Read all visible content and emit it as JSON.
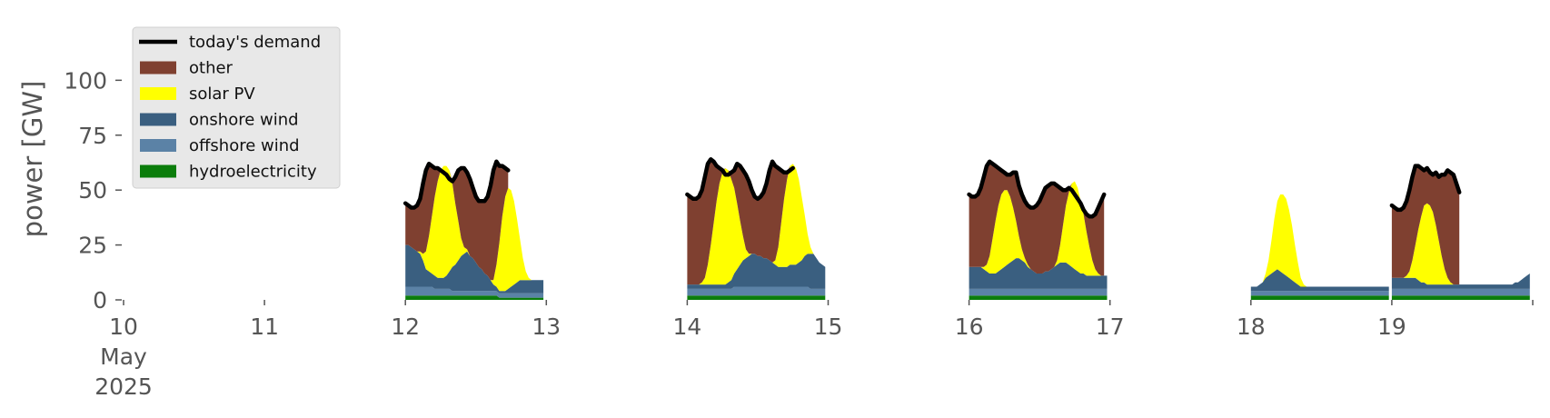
{
  "chart_data": {
    "type": "area",
    "title": "",
    "xlabel": "",
    "ylabel": "power [GW]",
    "ylim": [
      0,
      120
    ],
    "yticks": [
      0,
      25,
      50,
      75,
      100
    ],
    "x_tick_labels": [
      {
        "date": "2025-05-10",
        "label": "10",
        "sublabel_1": "May",
        "sublabel_2": "2025"
      },
      {
        "date": "2025-05-11",
        "label": "11"
      },
      {
        "date": "2025-05-12",
        "label": "12"
      },
      {
        "date": "2025-05-13",
        "label": "13"
      },
      {
        "date": "2025-05-14",
        "label": "14"
      },
      {
        "date": "2025-05-15",
        "label": "15"
      },
      {
        "date": "2025-05-16",
        "label": "16"
      },
      {
        "date": "2025-05-17",
        "label": "17"
      },
      {
        "date": "2025-05-18",
        "label": "18"
      },
      {
        "date": "2025-05-19",
        "label": "19"
      }
    ],
    "xlim": [
      "2025-05-10",
      "2025-05-20"
    ],
    "grid": false,
    "legend_position": "top-left",
    "stacked": true,
    "series": [
      {
        "name": "hydroelectricity",
        "color": "#0b7d0b"
      },
      {
        "name": "offshore wind",
        "color": "#5b82a6"
      },
      {
        "name": "onshore wind",
        "color": "#3a5f80"
      },
      {
        "name": "solar PV",
        "color": "#ffff00"
      },
      {
        "name": "other",
        "color": "#7f4030"
      }
    ],
    "demand_series": {
      "name": "today's demand",
      "color": "#000000"
    },
    "legend_order": [
      "today's demand",
      "other",
      "solar PV",
      "onshore wind",
      "offshore wind",
      "hydroelectricity"
    ],
    "days": [
      {
        "date": "2025-05-12",
        "hydro": [
          2,
          2,
          2,
          2,
          2,
          2,
          2,
          2,
          2,
          2,
          2,
          2,
          2,
          2,
          2,
          2,
          2,
          2,
          2,
          2,
          2,
          2,
          2,
          2,
          2,
          2,
          2,
          2,
          2,
          2,
          2,
          2,
          1,
          1,
          1,
          1,
          1,
          1,
          1,
          1,
          1,
          1,
          1,
          1,
          1,
          1,
          1,
          1
        ],
        "offshore": [
          4,
          4,
          4,
          4,
          4,
          4,
          4,
          4,
          4,
          4,
          3,
          3,
          3,
          3,
          3,
          3,
          2,
          2,
          2,
          2,
          2,
          2,
          2,
          2,
          2,
          2,
          2,
          2,
          2,
          2,
          2,
          2,
          2,
          2,
          2,
          2,
          2,
          2,
          2,
          2,
          2,
          2,
          2,
          2,
          2,
          2,
          2,
          2
        ],
        "onshore": [
          19,
          19,
          18,
          17,
          16,
          15,
          12,
          8,
          7,
          6,
          6,
          5,
          5,
          5,
          6,
          8,
          11,
          12,
          14,
          16,
          17,
          18,
          16,
          15,
          13,
          11,
          10,
          8,
          7,
          5,
          3,
          2,
          1,
          1,
          1,
          2,
          3,
          4,
          5,
          6,
          6,
          6,
          6,
          6,
          6,
          6,
          6,
          6
        ],
        "solar": [
          0,
          0,
          0,
          0,
          0,
          1,
          3,
          8,
          16,
          26,
          36,
          44,
          49,
          51,
          50,
          46,
          38,
          28,
          18,
          8,
          3,
          1,
          0,
          0,
          0,
          0,
          0,
          0,
          0,
          0,
          2,
          10,
          22,
          34,
          43,
          46,
          44,
          38,
          29,
          19,
          10,
          4,
          1,
          0,
          0,
          0,
          0,
          0
        ],
        "demand": [
          44,
          43,
          42,
          42,
          43,
          46,
          53,
          59,
          62,
          61,
          60,
          60,
          59,
          58,
          57,
          55,
          54,
          56,
          59,
          60,
          60,
          58,
          55,
          51,
          47,
          45,
          45,
          45,
          47,
          52,
          59,
          63,
          61,
          61,
          60,
          59
        ]
      },
      {
        "date": "2025-05-14",
        "hydro": [
          2,
          2,
          2,
          2,
          2,
          2,
          2,
          2,
          2,
          2,
          2,
          2,
          2,
          2,
          2,
          2,
          2,
          2,
          2,
          2,
          2,
          2,
          2,
          2,
          2,
          2,
          2,
          2,
          2,
          2,
          2,
          2,
          2,
          2,
          2,
          2,
          2,
          2,
          2,
          2,
          2,
          2,
          2,
          2,
          2,
          2,
          2,
          2
        ],
        "offshore": [
          3,
          3,
          3,
          3,
          3,
          3,
          3,
          3,
          3,
          3,
          3,
          3,
          3,
          3,
          3,
          3,
          4,
          4,
          4,
          4,
          4,
          4,
          4,
          4,
          4,
          4,
          4,
          4,
          4,
          4,
          4,
          4,
          4,
          4,
          4,
          4,
          4,
          4,
          4,
          4,
          4,
          4,
          3,
          3,
          3,
          3,
          3,
          3
        ],
        "onshore": [
          2,
          2,
          2,
          2,
          2,
          2,
          2,
          2,
          2,
          2,
          2,
          2,
          2,
          2,
          3,
          4,
          6,
          8,
          10,
          12,
          13,
          14,
          15,
          15,
          14,
          14,
          13,
          13,
          12,
          11,
          10,
          9,
          9,
          9,
          9,
          10,
          10,
          10,
          11,
          12,
          14,
          15,
          16,
          16,
          14,
          12,
          11,
          10
        ],
        "solar": [
          0,
          0,
          0,
          0,
          0,
          1,
          3,
          9,
          18,
          28,
          38,
          46,
          51,
          53,
          51,
          46,
          39,
          30,
          20,
          11,
          4,
          1,
          0,
          0,
          0,
          0,
          0,
          0,
          0,
          0,
          2,
          9,
          20,
          31,
          40,
          45,
          46,
          44,
          38,
          29,
          19,
          9,
          3,
          0,
          0,
          0,
          0,
          0
        ],
        "demand": [
          48,
          47,
          46,
          46,
          47,
          50,
          56,
          62,
          64,
          63,
          61,
          60,
          59,
          57,
          57,
          58,
          59,
          62,
          61,
          59,
          57,
          54,
          50,
          47,
          46,
          47,
          49,
          53,
          59,
          63,
          61,
          60,
          59,
          58,
          58,
          59,
          60
        ]
      },
      {
        "date": "2025-05-16",
        "hydro": [
          2,
          2,
          2,
          2,
          2,
          2,
          2,
          2,
          2,
          2,
          2,
          2,
          2,
          2,
          2,
          2,
          2,
          2,
          2,
          2,
          2,
          2,
          2,
          2,
          2,
          2,
          2,
          2,
          2,
          2,
          2,
          2,
          2,
          2,
          2,
          2,
          2,
          2,
          2,
          2,
          2,
          2,
          2,
          2,
          2,
          2,
          2,
          2
        ],
        "offshore": [
          3,
          3,
          3,
          3,
          3,
          3,
          3,
          3,
          3,
          3,
          3,
          3,
          3,
          3,
          3,
          3,
          3,
          3,
          3,
          3,
          3,
          3,
          3,
          3,
          3,
          3,
          3,
          3,
          3,
          3,
          3,
          3,
          3,
          3,
          3,
          3,
          3,
          3,
          3,
          3,
          3,
          3,
          3,
          3,
          3,
          3,
          3,
          3
        ],
        "onshore": [
          10,
          10,
          10,
          10,
          10,
          9,
          8,
          7,
          7,
          7,
          8,
          9,
          10,
          11,
          12,
          13,
          14,
          14,
          13,
          12,
          10,
          9,
          8,
          7,
          7,
          7,
          8,
          8,
          9,
          10,
          11,
          12,
          12,
          12,
          11,
          10,
          9,
          8,
          7,
          7,
          6,
          6,
          6,
          6,
          6,
          6,
          6,
          6
        ],
        "solar": [
          0,
          0,
          0,
          0,
          0,
          1,
          3,
          8,
          16,
          24,
          30,
          34,
          35,
          34,
          30,
          24,
          17,
          10,
          5,
          2,
          1,
          0,
          0,
          0,
          0,
          0,
          0,
          0,
          0,
          0,
          2,
          8,
          17,
          26,
          33,
          38,
          40,
          38,
          33,
          27,
          20,
          13,
          7,
          3,
          1,
          0,
          0,
          0
        ],
        "demand": [
          48,
          47,
          47,
          48,
          51,
          56,
          61,
          63,
          62,
          61,
          60,
          59,
          58,
          57,
          57,
          58,
          58,
          52,
          48,
          45,
          43,
          42,
          42,
          43,
          45,
          48,
          51,
          52,
          53,
          53,
          52,
          51,
          50,
          50,
          51,
          50,
          48,
          46,
          44,
          41,
          39,
          38,
          38,
          39,
          42,
          45,
          48
        ]
      },
      {
        "date": "2025-05-18",
        "hydro": [
          2,
          2,
          2,
          2,
          2,
          2,
          2,
          2,
          2,
          2,
          2,
          2,
          2,
          2,
          2,
          2,
          2,
          2,
          2,
          2,
          2,
          2,
          2,
          2,
          2,
          2,
          2,
          2,
          2,
          2,
          2,
          2,
          2,
          2,
          2,
          2,
          2,
          2,
          2,
          2,
          2,
          2,
          2,
          2,
          2,
          2,
          2,
          2
        ],
        "offshore": [
          2,
          2,
          2,
          2,
          2,
          2,
          2,
          2,
          2,
          2,
          2,
          2,
          2,
          2,
          2,
          2,
          2,
          2,
          2,
          2,
          2,
          2,
          2,
          2,
          2,
          2,
          2,
          2,
          2,
          2,
          2,
          2,
          2,
          2,
          2,
          2,
          2,
          2,
          2,
          2,
          2,
          2,
          2,
          2,
          2,
          2,
          2,
          2
        ],
        "onshore": [
          2,
          2,
          2,
          3,
          4,
          6,
          7,
          8,
          9,
          10,
          9,
          8,
          7,
          6,
          5,
          4,
          3,
          2,
          2,
          2,
          2,
          2,
          2,
          2,
          2,
          2,
          2,
          2,
          2,
          2,
          2,
          2,
          2,
          2,
          2,
          2,
          2,
          2,
          2,
          2,
          2,
          2,
          2,
          2,
          2,
          2,
          2,
          2
        ],
        "solar": [
          0,
          0,
          0,
          0,
          0,
          2,
          7,
          15,
          24,
          31,
          35,
          36,
          35,
          31,
          25,
          17,
          10,
          4,
          1,
          0,
          0,
          0,
          0,
          0,
          0,
          0,
          0,
          0,
          0,
          0,
          0,
          0,
          0,
          0,
          0,
          0,
          0,
          0,
          0,
          0,
          0,
          0,
          0,
          0,
          0,
          0,
          0,
          0
        ],
        "demand": null
      },
      {
        "date": "2025-05-19",
        "hydro": [
          2,
          2,
          2,
          2,
          2,
          2,
          2,
          2,
          2,
          2,
          2,
          2,
          2,
          2,
          2,
          2,
          2,
          2,
          2,
          2,
          2,
          2,
          2,
          2,
          2,
          2,
          2,
          2,
          2,
          2,
          2,
          2,
          2,
          2,
          2,
          2,
          2,
          2,
          2,
          2,
          2,
          2,
          2,
          2,
          2,
          2,
          2,
          2
        ],
        "offshore": [
          3,
          3,
          3,
          3,
          3,
          3,
          3,
          3,
          3,
          3,
          3,
          3,
          3,
          3,
          3,
          3,
          3,
          3,
          3,
          3,
          3,
          3,
          3,
          3,
          3,
          3,
          3,
          3,
          3,
          3,
          3,
          3,
          3,
          3,
          3,
          3,
          3,
          3,
          3,
          3,
          3,
          3,
          3,
          3,
          3,
          3,
          3,
          3
        ],
        "onshore": [
          5,
          5,
          5,
          5,
          5,
          5,
          5,
          5,
          5,
          4,
          3,
          3,
          2,
          2,
          2,
          2,
          2,
          2,
          2,
          2,
          2,
          2,
          2,
          2,
          2,
          2,
          2,
          2,
          2,
          2,
          2,
          2,
          2,
          2,
          2,
          2,
          2,
          2,
          2,
          2,
          2,
          2,
          3,
          3,
          4,
          5,
          6,
          7
        ],
        "solar": [
          0,
          0,
          0,
          0,
          0,
          1,
          3,
          8,
          15,
          23,
          30,
          35,
          37,
          36,
          33,
          27,
          20,
          13,
          7,
          3,
          1,
          0,
          0,
          0,
          0,
          0,
          0,
          0,
          0,
          0,
          0,
          0,
          0,
          0,
          0,
          0,
          0,
          0,
          0,
          0,
          0,
          0,
          0,
          0,
          0,
          0,
          0,
          0
        ],
        "demand": [
          43,
          42,
          41,
          41,
          42,
          45,
          50,
          56,
          61,
          61,
          60,
          59,
          60,
          58,
          57,
          58,
          56,
          57,
          57,
          59,
          58,
          57,
          53,
          49
        ]
      }
    ]
  }
}
